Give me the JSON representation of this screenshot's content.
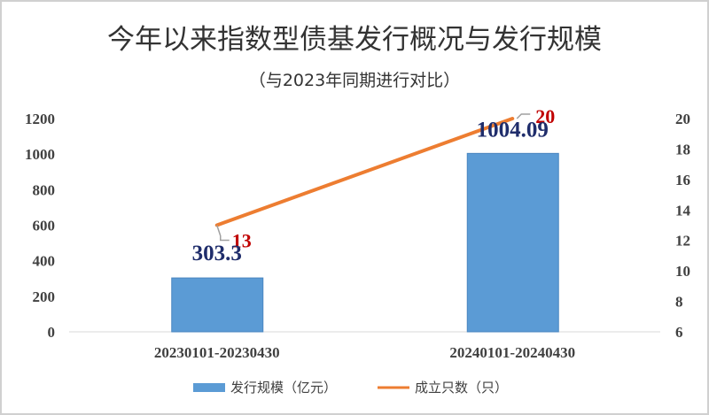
{
  "chart_data": {
    "type": "bar+line",
    "title": "今年以来指数型债基发行概况与发行规模",
    "subtitle": "（与2023年同期进行对比）",
    "categories": [
      "20230101-20230430",
      "20240101-20240430"
    ],
    "series": [
      {
        "name": "发行规模（亿元）",
        "type": "bar",
        "axis": "left",
        "values": [
          303.3,
          1004.09
        ],
        "labels": [
          "303.3",
          "1004.09"
        ],
        "color": "#5b9bd5"
      },
      {
        "name": "成立只数（只）",
        "type": "line",
        "axis": "right",
        "values": [
          13,
          20
        ],
        "labels": [
          "13",
          "20"
        ],
        "color": "#ed7d31"
      }
    ],
    "y_left": {
      "range": [
        0,
        1200
      ],
      "ticks": [
        "0",
        "200",
        "400",
        "600",
        "800",
        "1000",
        "1200"
      ]
    },
    "y_right": {
      "range": [
        6,
        20
      ],
      "ticks": [
        "6",
        "8",
        "10",
        "12",
        "14",
        "16",
        "18",
        "20"
      ]
    },
    "grid": false,
    "legend": "bottom",
    "bar_label_color": "#1f2d6b",
    "line_label_color": "#c00000"
  }
}
